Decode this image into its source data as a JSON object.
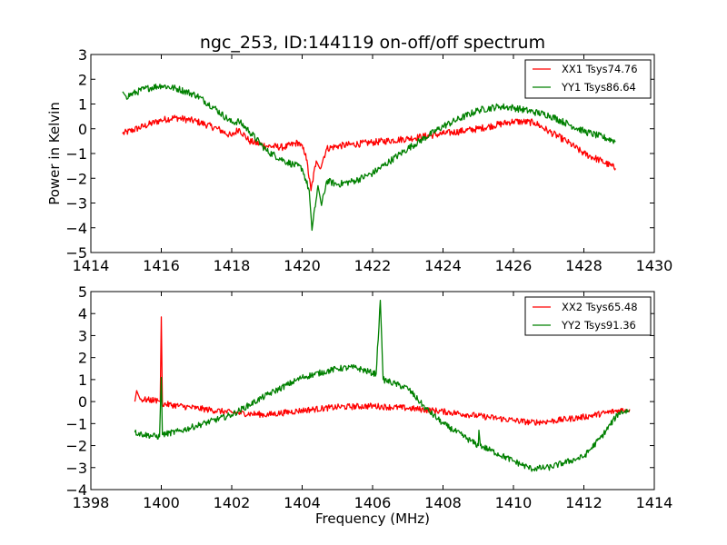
{
  "figure": {
    "background": "#ffffff"
  },
  "chart_data": [
    {
      "type": "line",
      "title": "ngc_253, ID:144119 on-off/off spectrum",
      "xlabel": "",
      "ylabel": "Power in Kelvin",
      "xlim": [
        1414,
        1430
      ],
      "ylim": [
        -5,
        3
      ],
      "xticks": [
        "1414",
        "1416",
        "1418",
        "1420",
        "1422",
        "1424",
        "1426",
        "1428",
        "1430"
      ],
      "yticks": [
        "3",
        "2",
        "1",
        "0",
        "−1",
        "−2",
        "−3",
        "−4",
        "−5"
      ],
      "grid": false,
      "legend_position": "top-right",
      "series": [
        {
          "name": "XX1 Tsys74.76",
          "color": "#ff0000",
          "x": [
            1414.9,
            1415.5,
            1416.0,
            1416.4,
            1417.0,
            1417.6,
            1418.0,
            1418.2,
            1418.5,
            1419.0,
            1419.5,
            1419.9,
            1420.1,
            1420.25,
            1420.4,
            1420.5,
            1420.7,
            1421.0,
            1422.0,
            1423.0,
            1424.0,
            1425.0,
            1426.0,
            1426.6,
            1427.0,
            1427.5,
            1428.0,
            1428.5,
            1428.9
          ],
          "y": [
            -0.2,
            0.1,
            0.35,
            0.45,
            0.3,
            0.0,
            -0.3,
            0.0,
            -0.5,
            -0.7,
            -0.75,
            -0.55,
            -1.0,
            -2.5,
            -1.3,
            -1.6,
            -0.8,
            -0.7,
            -0.55,
            -0.4,
            -0.2,
            0.0,
            0.3,
            0.25,
            -0.1,
            -0.5,
            -1.0,
            -1.3,
            -1.6
          ]
        },
        {
          "name": "YY1 Tsys86.64",
          "color": "#008000",
          "x": [
            1414.9,
            1415.0,
            1415.5,
            1416.0,
            1416.5,
            1417.0,
            1417.5,
            1418.0,
            1418.2,
            1418.5,
            1419.0,
            1419.5,
            1420.0,
            1420.2,
            1420.28,
            1420.45,
            1420.55,
            1420.7,
            1421.0,
            1421.5,
            1422.0,
            1423.0,
            1424.0,
            1425.0,
            1425.6,
            1426.0,
            1427.0,
            1428.0,
            1428.9
          ],
          "y": [
            1.5,
            1.3,
            1.6,
            1.75,
            1.6,
            1.35,
            0.85,
            0.25,
            0.3,
            -0.1,
            -0.9,
            -1.3,
            -1.6,
            -2.5,
            -4.1,
            -2.3,
            -3.1,
            -2.1,
            -2.25,
            -2.1,
            -1.8,
            -0.8,
            0.1,
            0.75,
            0.9,
            0.85,
            0.55,
            -0.1,
            -0.5
          ]
        }
      ]
    },
    {
      "type": "line",
      "title": "",
      "xlabel": "Frequency (MHz)",
      "ylabel": "",
      "xlim": [
        1398,
        1414
      ],
      "ylim": [
        -4,
        5
      ],
      "xticks": [
        "1398",
        "1400",
        "1402",
        "1404",
        "1406",
        "1408",
        "1410",
        "1412",
        "1414"
      ],
      "yticks": [
        "5",
        "4",
        "3",
        "2",
        "1",
        "0",
        "−1",
        "−2",
        "−3",
        "−4"
      ],
      "grid": false,
      "legend_position": "top-right",
      "series": [
        {
          "name": "XX2 Tsys65.48",
          "color": "#ff0000",
          "x": [
            1399.25,
            1399.3,
            1399.4,
            1399.9,
            1399.97,
            1400.0,
            1400.03,
            1401.0,
            1402.0,
            1403.0,
            1404.0,
            1405.0,
            1406.0,
            1407.0,
            1408.0,
            1409.0,
            1410.0,
            1410.5,
            1411.0,
            1412.0,
            1413.0,
            1413.3
          ],
          "y": [
            0.0,
            0.5,
            0.1,
            0.05,
            0.0,
            3.85,
            -0.1,
            -0.3,
            -0.5,
            -0.6,
            -0.4,
            -0.25,
            -0.2,
            -0.3,
            -0.45,
            -0.65,
            -0.85,
            -0.95,
            -0.9,
            -0.7,
            -0.4,
            -0.35
          ]
        },
        {
          "name": "YY2 Tsys91.36",
          "color": "#008000",
          "x": [
            1399.25,
            1399.5,
            1399.95,
            1400.0,
            1400.03,
            1400.5,
            1401.0,
            1402.0,
            1403.0,
            1404.0,
            1405.0,
            1405.5,
            1406.1,
            1406.22,
            1406.3,
            1407.0,
            1407.5,
            1408.0,
            1409.0,
            1409.02,
            1409.06,
            1410.0,
            1410.5,
            1411.0,
            1412.0,
            1412.5,
            1413.0,
            1413.3
          ],
          "y": [
            -1.4,
            -1.5,
            -1.6,
            1.1,
            -1.5,
            -1.35,
            -1.1,
            -0.6,
            0.3,
            1.1,
            1.5,
            1.55,
            1.25,
            4.6,
            1.0,
            0.6,
            -0.3,
            -1.0,
            -2.0,
            -1.3,
            -2.0,
            -2.7,
            -3.05,
            -3.0,
            -2.5,
            -1.6,
            -0.5,
            -0.4
          ]
        }
      ]
    }
  ]
}
